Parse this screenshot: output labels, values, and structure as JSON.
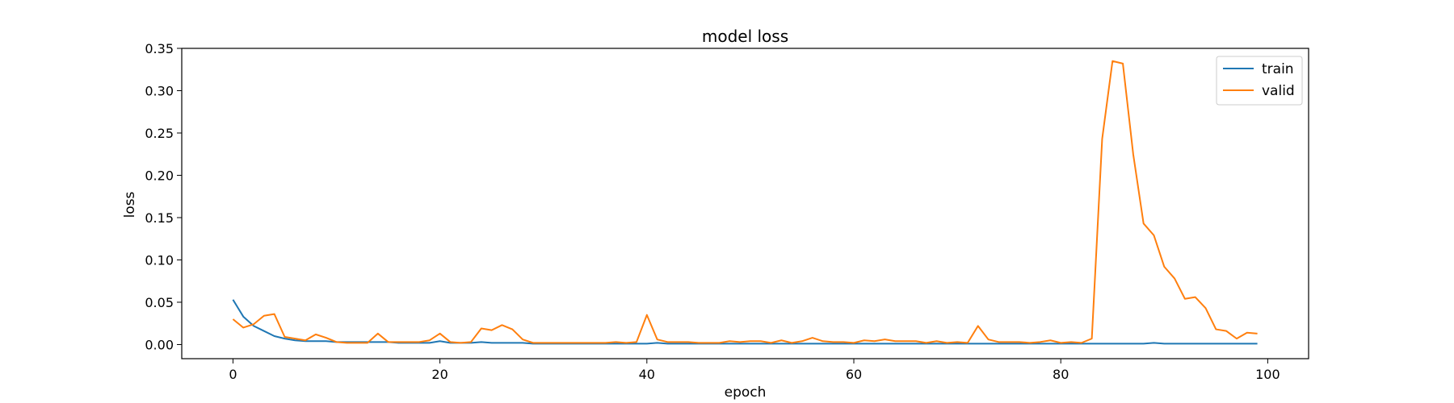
{
  "chart_data": {
    "type": "line",
    "title": "model loss",
    "xlabel": "epoch",
    "ylabel": "loss",
    "xlim": [
      -4.95,
      103.95
    ],
    "ylim": [
      -0.0167,
      0.35
    ],
    "xticks": [
      0,
      20,
      40,
      60,
      80,
      100
    ],
    "yticks": [
      0.0,
      0.05,
      0.1,
      0.15,
      0.2,
      0.25,
      0.3,
      0.35
    ],
    "ytick_labels": [
      "0.00",
      "0.05",
      "0.10",
      "0.15",
      "0.20",
      "0.25",
      "0.30",
      "0.35"
    ],
    "grid": false,
    "legend_position": "upper-right",
    "series": [
      {
        "name": "train",
        "color": "#1f77b4",
        "values": [
          0.053,
          0.033,
          0.022,
          0.016,
          0.01,
          0.007,
          0.005,
          0.004,
          0.004,
          0.004,
          0.003,
          0.003,
          0.003,
          0.003,
          0.003,
          0.003,
          0.002,
          0.002,
          0.002,
          0.002,
          0.004,
          0.002,
          0.002,
          0.002,
          0.003,
          0.002,
          0.002,
          0.002,
          0.002,
          0.001,
          0.001,
          0.001,
          0.001,
          0.001,
          0.001,
          0.001,
          0.001,
          0.001,
          0.001,
          0.001,
          0.001,
          0.002,
          0.001,
          0.001,
          0.001,
          0.001,
          0.001,
          0.001,
          0.001,
          0.001,
          0.001,
          0.001,
          0.001,
          0.001,
          0.001,
          0.001,
          0.001,
          0.001,
          0.001,
          0.001,
          0.001,
          0.001,
          0.001,
          0.001,
          0.001,
          0.001,
          0.001,
          0.001,
          0.001,
          0.001,
          0.001,
          0.001,
          0.001,
          0.001,
          0.001,
          0.001,
          0.001,
          0.001,
          0.001,
          0.001,
          0.001,
          0.001,
          0.001,
          0.001,
          0.001,
          0.001,
          0.001,
          0.001,
          0.001,
          0.002,
          0.001,
          0.001,
          0.001,
          0.001,
          0.001,
          0.001,
          0.001,
          0.001,
          0.001,
          0.001
        ]
      },
      {
        "name": "valid",
        "color": "#ff7f0e",
        "values": [
          0.03,
          0.02,
          0.024,
          0.034,
          0.036,
          0.009,
          0.007,
          0.005,
          0.012,
          0.008,
          0.003,
          0.002,
          0.002,
          0.002,
          0.013,
          0.003,
          0.003,
          0.003,
          0.003,
          0.005,
          0.013,
          0.003,
          0.002,
          0.003,
          0.019,
          0.017,
          0.023,
          0.018,
          0.006,
          0.002,
          0.002,
          0.002,
          0.002,
          0.002,
          0.002,
          0.002,
          0.002,
          0.003,
          0.002,
          0.003,
          0.035,
          0.006,
          0.003,
          0.003,
          0.003,
          0.002,
          0.002,
          0.002,
          0.004,
          0.003,
          0.004,
          0.004,
          0.002,
          0.005,
          0.002,
          0.004,
          0.008,
          0.004,
          0.003,
          0.003,
          0.002,
          0.005,
          0.004,
          0.006,
          0.004,
          0.004,
          0.004,
          0.002,
          0.004,
          0.002,
          0.003,
          0.002,
          0.022,
          0.006,
          0.003,
          0.003,
          0.003,
          0.002,
          0.003,
          0.005,
          0.002,
          0.003,
          0.002,
          0.007,
          0.243,
          0.335,
          0.332,
          0.225,
          0.143,
          0.129,
          0.092,
          0.078,
          0.054,
          0.056,
          0.043,
          0.018,
          0.016,
          0.007,
          0.014,
          0.013
        ]
      }
    ]
  }
}
